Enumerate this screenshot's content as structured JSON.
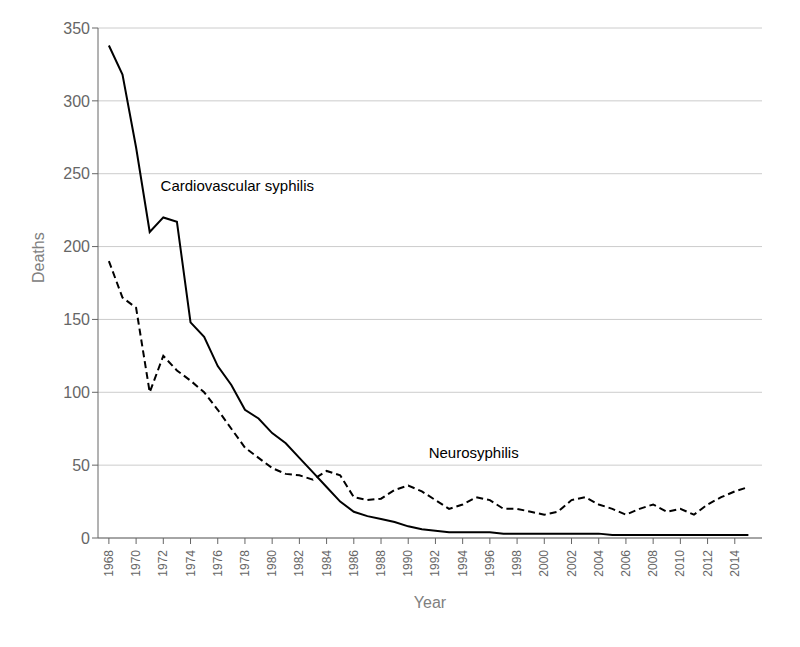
{
  "chart_data": {
    "type": "line",
    "x_label": "Year",
    "y_label": "Deaths",
    "x": [
      1968,
      1969,
      1970,
      1971,
      1972,
      1973,
      1974,
      1975,
      1976,
      1977,
      1978,
      1979,
      1980,
      1981,
      1982,
      1983,
      1984,
      1985,
      1986,
      1987,
      1988,
      1989,
      1990,
      1991,
      1992,
      1993,
      1994,
      1995,
      1996,
      1997,
      1998,
      1999,
      2000,
      2001,
      2002,
      2003,
      2004,
      2005,
      2006,
      2007,
      2008,
      2009,
      2010,
      2011,
      2012,
      2013,
      2014,
      2015
    ],
    "series": [
      {
        "color": "black",
        "line_style": "solid",
        "values": [
          338,
          318,
          268,
          210,
          220,
          217,
          148,
          138,
          118,
          105,
          88,
          82,
          72,
          65,
          55,
          45,
          35,
          25,
          18,
          15,
          13,
          11,
          8,
          6,
          5,
          4,
          4,
          4,
          4,
          3,
          3,
          3,
          3,
          3,
          3,
          3,
          3,
          2,
          2,
          2,
          2,
          2,
          2,
          2,
          2,
          2,
          2,
          2
        ]
      },
      {
        "color": "black",
        "line_style": "dashed",
        "values": [
          190,
          165,
          158,
          100,
          125,
          115,
          108,
          100,
          88,
          75,
          62,
          55,
          48,
          44,
          43,
          40,
          46,
          43,
          28,
          26,
          27,
          33,
          36,
          32,
          26,
          20,
          23,
          28,
          26,
          20,
          20,
          18,
          16,
          18,
          26,
          28,
          23,
          20,
          16,
          20,
          23,
          18,
          20,
          16,
          23,
          28,
          32,
          35
        ]
      }
    ],
    "annotations": [
      {
        "text": "Cardiovascular syphilis",
        "x": 1971.8,
        "y": 236
      },
      {
        "text": "Neurosyphilis",
        "x": 1991.5,
        "y": 53
      }
    ],
    "xlim": [
      1967.2,
      2016.0
    ],
    "xticks": [
      1968,
      1970,
      1972,
      1974,
      1976,
      1978,
      1980,
      1982,
      1984,
      1986,
      1988,
      1990,
      1992,
      1994,
      1996,
      1998,
      2000,
      2002,
      2004,
      2006,
      2008,
      2010,
      2012,
      2014
    ],
    "ylim": [
      0,
      350
    ],
    "yticks": [
      0,
      50,
      100,
      150,
      200,
      250,
      300,
      350
    ],
    "grid": true
  }
}
